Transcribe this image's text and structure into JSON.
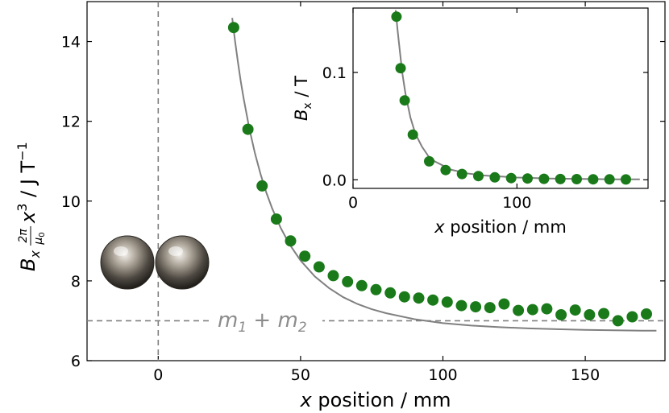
{
  "chart_data": [
    {
      "type": "scatter",
      "role": "main",
      "title": "",
      "xlabel": "x position / mm",
      "ylabel": "B_x (2π/μ0) x^3 / J T^-1",
      "xlabel_parts": {
        "var": "x",
        "rest": " position / mm"
      },
      "ylabel_parts": {
        "var": "B",
        "sub": "x",
        "frac_num": "2π",
        "frac_den_var": "μ",
        "frac_den_sub": "0",
        "x_var": "x",
        "x_exp": "3",
        "unit": " / J T",
        "unit_exp": "−1"
      },
      "xlim": [
        -25,
        178
      ],
      "ylim": [
        6,
        15
      ],
      "xticks": [
        0,
        50,
        100,
        150
      ],
      "yticks": [
        6,
        8,
        10,
        12,
        14
      ],
      "xtick_labels": [
        "0",
        "50",
        "100",
        "150"
      ],
      "ytick_labels": [
        "6",
        "8",
        "10",
        "12",
        "14"
      ],
      "marker_color": "#1a7a1a",
      "fit_color": "#808080",
      "series": [
        {
          "name": "measured",
          "x": [
            26.5,
            31.5,
            36.5,
            41.5,
            46.5,
            51.5,
            56.5,
            61.5,
            66.5,
            71.5,
            76.5,
            81.5,
            86.5,
            91.5,
            96.5,
            101.5,
            106.5,
            111.5,
            116.5,
            121.5,
            126.5,
            131.5,
            136.5,
            141.5,
            146.5,
            151.5,
            156.5,
            161.5,
            166.5,
            171.5
          ],
          "y": [
            14.35,
            11.8,
            10.38,
            9.55,
            9.0,
            8.62,
            8.35,
            8.13,
            7.98,
            7.88,
            7.78,
            7.7,
            7.6,
            7.57,
            7.52,
            7.47,
            7.38,
            7.35,
            7.33,
            7.42,
            7.26,
            7.28,
            7.3,
            7.15,
            7.27,
            7.15,
            7.18,
            7.0,
            7.1,
            7.17
          ]
        }
      ],
      "fit_curve": {
        "name": "fit",
        "x": [
          26,
          27,
          28,
          29,
          30,
          32,
          34,
          36,
          38,
          40,
          43,
          46,
          50,
          55,
          60,
          65,
          70,
          75,
          80,
          90,
          100,
          110,
          120,
          130,
          140,
          150,
          160,
          170,
          175
        ],
        "y": [
          14.59,
          14.0,
          13.48,
          13.0,
          12.57,
          11.82,
          11.19,
          10.66,
          10.21,
          9.82,
          9.33,
          8.93,
          8.51,
          8.11,
          7.82,
          7.59,
          7.42,
          7.29,
          7.19,
          7.04,
          6.94,
          6.88,
          6.84,
          6.81,
          6.79,
          6.77,
          6.76,
          6.75,
          6.75
        ]
      },
      "reference_line": {
        "y": 7.0,
        "label_parts": {
          "m1": "m",
          "s1": "1",
          "plus": " + ",
          "m2": "m",
          "s2": "2"
        },
        "label": "m1 + m2"
      },
      "zero_line": {
        "x": 0
      }
    },
    {
      "type": "scatter",
      "role": "inset",
      "title": "",
      "xlabel": "x position / mm",
      "ylabel": "B_x / T",
      "xlabel_parts": {
        "var": "x",
        "rest": " position / mm"
      },
      "ylabel_parts": {
        "var": "B",
        "sub": "x",
        "unit": " / T"
      },
      "xlim": [
        0,
        180
      ],
      "ylim": [
        -0.008,
        0.16
      ],
      "xticks": [
        0,
        100
      ],
      "yticks": [
        0.0,
        0.1
      ],
      "xtick_labels": [
        "0",
        "100"
      ],
      "ytick_labels": [
        "0.0",
        "0.1"
      ],
      "series": [
        {
          "name": "measured",
          "x": [
            26.5,
            29,
            31.5,
            36.5,
            46.5,
            56.5,
            66.5,
            76.5,
            86.5,
            96.5,
            106.5,
            116.5,
            126.5,
            136.5,
            146.5,
            156.5,
            166.5
          ],
          "y": [
            0.152,
            0.104,
            0.074,
            0.042,
            0.0172,
            0.0091,
            0.0054,
            0.0035,
            0.0023,
            0.0016,
            0.0012,
            0.0009,
            0.0007,
            0.0006,
            0.0005,
            0.0004,
            0.0003
          ]
        }
      ],
      "fit_curve": {
        "name": "fit",
        "x": [
          26,
          27,
          28,
          30,
          32,
          35,
          38,
          42,
          46,
          50,
          60,
          70,
          80,
          100,
          120,
          140,
          160,
          175
        ],
        "y": [
          0.158,
          0.142,
          0.128,
          0.1,
          0.08,
          0.058,
          0.043,
          0.031,
          0.022,
          0.017,
          0.0093,
          0.0059,
          0.004,
          0.0021,
          0.0012,
          0.0008,
          0.0005,
          0.0004
        ]
      }
    }
  ]
}
